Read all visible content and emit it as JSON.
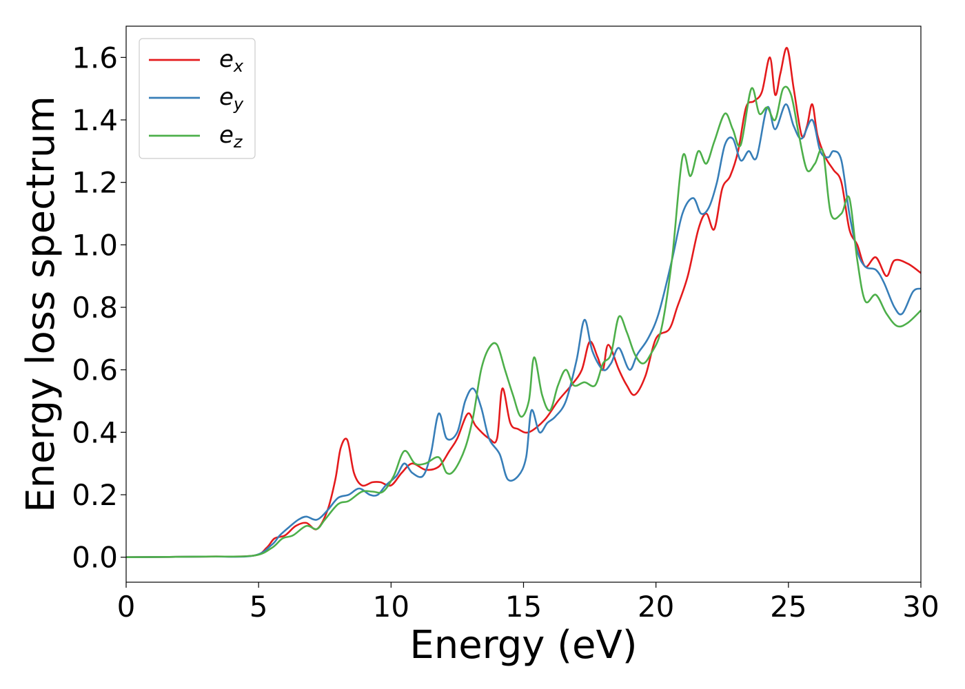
{
  "chart_data": {
    "type": "line",
    "xlabel": "Energy (eV)",
    "ylabel": "Energy loss spectrum",
    "xlim": [
      0,
      30
    ],
    "ylim": [
      -0.08,
      1.7
    ],
    "xticks": [
      0,
      5,
      10,
      15,
      20,
      25,
      30
    ],
    "xtick_labels": [
      "0",
      "5",
      "10",
      "15",
      "20",
      "25",
      "30"
    ],
    "yticks": [
      0.0,
      0.2,
      0.4,
      0.6,
      0.8,
      1.0,
      1.2,
      1.4,
      1.6
    ],
    "ytick_labels": [
      "0.0",
      "0.2",
      "0.4",
      "0.6",
      "0.8",
      "1.0",
      "1.2",
      "1.4",
      "1.6"
    ],
    "grid": false,
    "legend_position": "top-left",
    "series": [
      {
        "name": "e",
        "sub": "x",
        "color": "#e41a1c",
        "points": [
          [
            0,
            0
          ],
          [
            3,
            0.002
          ],
          [
            4.8,
            0.005
          ],
          [
            5.3,
            0.03
          ],
          [
            5.6,
            0.06
          ],
          [
            6,
            0.07
          ],
          [
            6.4,
            0.1
          ],
          [
            6.8,
            0.11
          ],
          [
            7.2,
            0.09
          ],
          [
            7.6,
            0.15
          ],
          [
            7.9,
            0.25
          ],
          [
            8.1,
            0.35
          ],
          [
            8.35,
            0.375
          ],
          [
            8.6,
            0.27
          ],
          [
            8.9,
            0.23
          ],
          [
            9.3,
            0.24
          ],
          [
            9.6,
            0.24
          ],
          [
            10,
            0.23
          ],
          [
            10.4,
            0.27
          ],
          [
            10.8,
            0.3
          ],
          [
            11.3,
            0.28
          ],
          [
            11.8,
            0.29
          ],
          [
            12.2,
            0.34
          ],
          [
            12.5,
            0.38
          ],
          [
            12.9,
            0.46
          ],
          [
            13.2,
            0.42
          ],
          [
            13.7,
            0.38
          ],
          [
            14,
            0.38
          ],
          [
            14.2,
            0.54
          ],
          [
            14.5,
            0.43
          ],
          [
            14.8,
            0.41
          ],
          [
            15.2,
            0.4
          ],
          [
            15.8,
            0.44
          ],
          [
            16.3,
            0.5
          ],
          [
            16.8,
            0.55
          ],
          [
            17.2,
            0.6
          ],
          [
            17.5,
            0.69
          ],
          [
            17.8,
            0.64
          ],
          [
            18,
            0.6
          ],
          [
            18.2,
            0.68
          ],
          [
            18.6,
            0.6
          ],
          [
            18.9,
            0.55
          ],
          [
            19.2,
            0.52
          ],
          [
            19.6,
            0.58
          ],
          [
            20,
            0.7
          ],
          [
            20.5,
            0.73
          ],
          [
            20.8,
            0.8
          ],
          [
            21.2,
            0.9
          ],
          [
            21.6,
            1.05
          ],
          [
            21.9,
            1.1
          ],
          [
            22.2,
            1.05
          ],
          [
            22.5,
            1.18
          ],
          [
            22.8,
            1.22
          ],
          [
            23.1,
            1.3
          ],
          [
            23.4,
            1.44
          ],
          [
            23.7,
            1.46
          ],
          [
            24,
            1.49
          ],
          [
            24.3,
            1.6
          ],
          [
            24.5,
            1.48
          ],
          [
            24.7,
            1.55
          ],
          [
            24.95,
            1.63
          ],
          [
            25.2,
            1.5
          ],
          [
            25.5,
            1.35
          ],
          [
            25.7,
            1.38
          ],
          [
            25.9,
            1.45
          ],
          [
            26.1,
            1.35
          ],
          [
            26.4,
            1.28
          ],
          [
            26.7,
            1.24
          ],
          [
            27,
            1.2
          ],
          [
            27.3,
            1.05
          ],
          [
            27.6,
            1.0
          ],
          [
            27.9,
            0.93
          ],
          [
            28.3,
            0.96
          ],
          [
            28.7,
            0.9
          ],
          [
            29,
            0.95
          ],
          [
            29.5,
            0.94
          ],
          [
            30,
            0.91
          ]
        ]
      },
      {
        "name": "e",
        "sub": "y",
        "color": "#377eb8",
        "points": [
          [
            0,
            0
          ],
          [
            3,
            0.002
          ],
          [
            4.8,
            0.005
          ],
          [
            5.5,
            0.04
          ],
          [
            5.8,
            0.07
          ],
          [
            6.2,
            0.1
          ],
          [
            6.5,
            0.12
          ],
          [
            6.8,
            0.13
          ],
          [
            7.2,
            0.12
          ],
          [
            7.6,
            0.15
          ],
          [
            8,
            0.19
          ],
          [
            8.4,
            0.2
          ],
          [
            8.8,
            0.22
          ],
          [
            9.2,
            0.2
          ],
          [
            9.5,
            0.2
          ],
          [
            9.8,
            0.23
          ],
          [
            10.2,
            0.26
          ],
          [
            10.5,
            0.3
          ],
          [
            10.8,
            0.27
          ],
          [
            11.2,
            0.26
          ],
          [
            11.5,
            0.33
          ],
          [
            11.8,
            0.46
          ],
          [
            12.1,
            0.38
          ],
          [
            12.5,
            0.4
          ],
          [
            12.8,
            0.5
          ],
          [
            13.1,
            0.54
          ],
          [
            13.4,
            0.48
          ],
          [
            13.7,
            0.38
          ],
          [
            14.1,
            0.33
          ],
          [
            14.4,
            0.25
          ],
          [
            14.8,
            0.26
          ],
          [
            15.1,
            0.32
          ],
          [
            15.3,
            0.47
          ],
          [
            15.6,
            0.4
          ],
          [
            15.9,
            0.43
          ],
          [
            16.2,
            0.45
          ],
          [
            16.6,
            0.5
          ],
          [
            17,
            0.63
          ],
          [
            17.3,
            0.76
          ],
          [
            17.6,
            0.66
          ],
          [
            18,
            0.6
          ],
          [
            18.3,
            0.62
          ],
          [
            18.6,
            0.67
          ],
          [
            19,
            0.6
          ],
          [
            19.3,
            0.65
          ],
          [
            19.7,
            0.7
          ],
          [
            20.1,
            0.78
          ],
          [
            20.6,
            0.95
          ],
          [
            21,
            1.1
          ],
          [
            21.4,
            1.15
          ],
          [
            21.7,
            1.1
          ],
          [
            22,
            1.12
          ],
          [
            22.3,
            1.2
          ],
          [
            22.6,
            1.32
          ],
          [
            22.9,
            1.34
          ],
          [
            23.2,
            1.27
          ],
          [
            23.5,
            1.3
          ],
          [
            23.8,
            1.28
          ],
          [
            24.2,
            1.44
          ],
          [
            24.5,
            1.37
          ],
          [
            24.9,
            1.45
          ],
          [
            25.2,
            1.38
          ],
          [
            25.5,
            1.34
          ],
          [
            25.9,
            1.4
          ],
          [
            26.2,
            1.3
          ],
          [
            26.5,
            1.28
          ],
          [
            26.7,
            1.3
          ],
          [
            27,
            1.27
          ],
          [
            27.3,
            1.1
          ],
          [
            27.6,
            0.98
          ],
          [
            27.9,
            0.93
          ],
          [
            28.3,
            0.92
          ],
          [
            28.6,
            0.88
          ],
          [
            29,
            0.8
          ],
          [
            29.3,
            0.78
          ],
          [
            29.7,
            0.85
          ],
          [
            30,
            0.86
          ]
        ]
      },
      {
        "name": "e",
        "sub": "z",
        "color": "#4daf4a",
        "points": [
          [
            0,
            0
          ],
          [
            3,
            0.002
          ],
          [
            4.8,
            0.005
          ],
          [
            5.5,
            0.03
          ],
          [
            5.9,
            0.06
          ],
          [
            6.3,
            0.07
          ],
          [
            6.8,
            0.1
          ],
          [
            7.2,
            0.09
          ],
          [
            7.5,
            0.12
          ],
          [
            8,
            0.17
          ],
          [
            8.4,
            0.18
          ],
          [
            8.9,
            0.21
          ],
          [
            9.3,
            0.21
          ],
          [
            9.7,
            0.21
          ],
          [
            10.1,
            0.26
          ],
          [
            10.5,
            0.34
          ],
          [
            10.9,
            0.3
          ],
          [
            11.3,
            0.3
          ],
          [
            11.8,
            0.32
          ],
          [
            12.1,
            0.27
          ],
          [
            12.4,
            0.28
          ],
          [
            12.8,
            0.35
          ],
          [
            13.1,
            0.45
          ],
          [
            13.4,
            0.6
          ],
          [
            13.7,
            0.67
          ],
          [
            14,
            0.68
          ],
          [
            14.3,
            0.6
          ],
          [
            14.6,
            0.52
          ],
          [
            14.9,
            0.45
          ],
          [
            15.2,
            0.5
          ],
          [
            15.4,
            0.64
          ],
          [
            15.7,
            0.52
          ],
          [
            16,
            0.47
          ],
          [
            16.3,
            0.55
          ],
          [
            16.6,
            0.6
          ],
          [
            16.9,
            0.55
          ],
          [
            17.3,
            0.56
          ],
          [
            17.7,
            0.55
          ],
          [
            18,
            0.62
          ],
          [
            18.3,
            0.65
          ],
          [
            18.6,
            0.77
          ],
          [
            18.9,
            0.72
          ],
          [
            19.2,
            0.65
          ],
          [
            19.5,
            0.62
          ],
          [
            19.8,
            0.65
          ],
          [
            20.2,
            0.73
          ],
          [
            20.6,
            0.95
          ],
          [
            21,
            1.28
          ],
          [
            21.3,
            1.22
          ],
          [
            21.6,
            1.3
          ],
          [
            21.9,
            1.26
          ],
          [
            22.2,
            1.33
          ],
          [
            22.6,
            1.42
          ],
          [
            22.9,
            1.37
          ],
          [
            23.2,
            1.32
          ],
          [
            23.6,
            1.5
          ],
          [
            23.9,
            1.42
          ],
          [
            24.2,
            1.44
          ],
          [
            24.5,
            1.4
          ],
          [
            24.8,
            1.5
          ],
          [
            25.1,
            1.48
          ],
          [
            25.4,
            1.35
          ],
          [
            25.7,
            1.24
          ],
          [
            26,
            1.26
          ],
          [
            26.3,
            1.3
          ],
          [
            26.6,
            1.1
          ],
          [
            27,
            1.1
          ],
          [
            27.3,
            1.15
          ],
          [
            27.6,
            0.95
          ],
          [
            27.9,
            0.82
          ],
          [
            28.3,
            0.84
          ],
          [
            28.7,
            0.78
          ],
          [
            29.1,
            0.74
          ],
          [
            29.5,
            0.75
          ],
          [
            30,
            0.79
          ]
        ]
      }
    ]
  }
}
